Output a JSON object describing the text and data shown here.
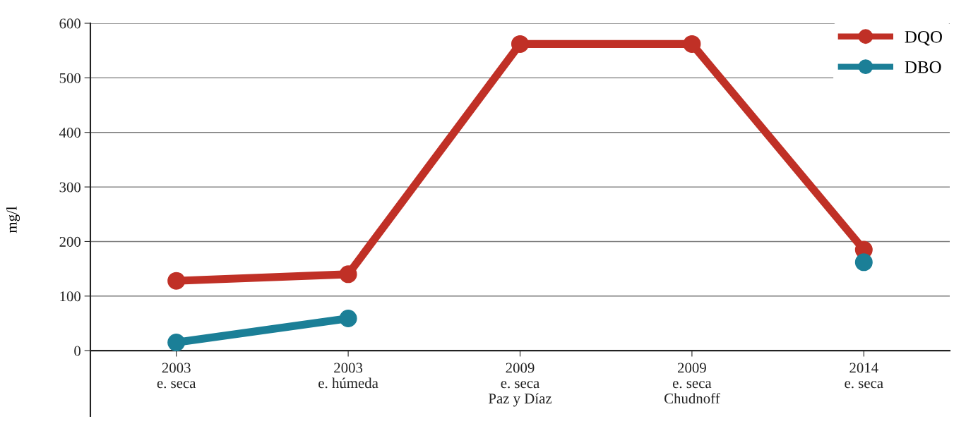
{
  "chart_data": {
    "type": "line",
    "ylabel": "mg/l",
    "categories": [
      "2003\ne. seca",
      "2003\ne. húmeda",
      "2009\ne. seca\nPaz y Díaz",
      "2009\ne. seca\nChudnoff",
      "2014\ne. seca"
    ],
    "series": [
      {
        "name": "DQO",
        "color": "#c03026",
        "values": [
          128,
          140,
          562,
          562,
          185
        ]
      },
      {
        "name": "DBO",
        "color": "#1b7f97",
        "values": [
          15,
          59,
          null,
          null,
          162
        ]
      }
    ],
    "ylim": [
      -120,
      600
    ],
    "yticks": [
      0,
      100,
      200,
      300,
      400,
      500,
      600
    ],
    "grid": "y",
    "legend": "top right",
    "marker": "circle",
    "line_style": "solid"
  }
}
